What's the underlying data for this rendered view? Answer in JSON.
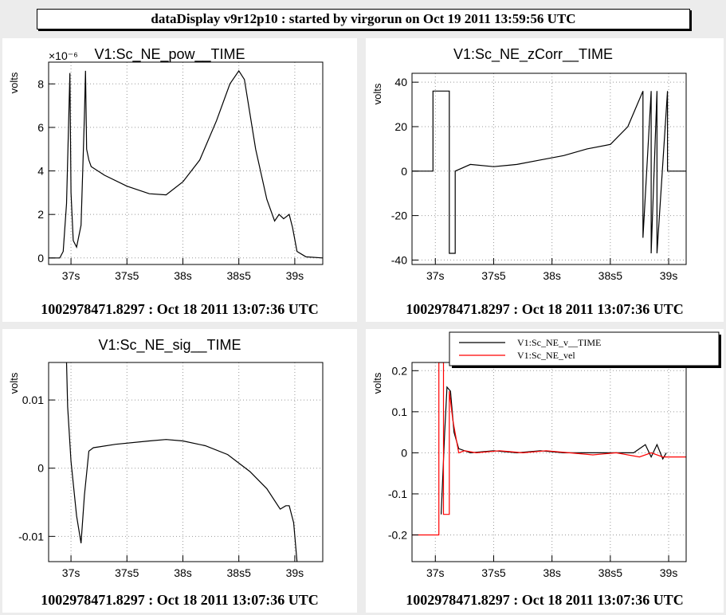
{
  "header": {
    "title": "dataDisplay v9r12p10 : started by virgorun on Oct 19 2011 13:59:56 UTC"
  },
  "chart_data": [
    {
      "type": "line",
      "title": "V1:Sc_NE_pow__TIME",
      "ylabel": "volts",
      "exponent_label": "×10⁻⁶",
      "x_ticks": [
        "37s",
        "37s5",
        "38s",
        "38s5",
        "39s"
      ],
      "x_tick_values": [
        37,
        37.5,
        38,
        38.5,
        39
      ],
      "xlim": [
        36.8,
        39.25
      ],
      "y_ticks": [
        "0",
        "2",
        "4",
        "6",
        "8"
      ],
      "y_tick_values": [
        0,
        2,
        4,
        6,
        8
      ],
      "ylim": [
        -0.3,
        9.0
      ],
      "footer": "1002978471.8297 : Oct 18 2011 13:07:36 UTC",
      "series": [
        {
          "color": "#000000",
          "x": [
            36.8,
            36.9,
            36.93,
            36.96,
            36.99,
            37.0,
            37.02,
            37.05,
            37.09,
            37.12,
            37.13,
            37.14,
            37.16,
            37.18,
            37.3,
            37.5,
            37.7,
            37.85,
            38.0,
            38.15,
            38.3,
            38.42,
            38.5,
            38.55,
            38.65,
            38.75,
            38.82,
            38.86,
            38.9,
            38.95,
            38.98,
            39.02,
            39.1,
            39.25
          ],
          "y": [
            0.0,
            0.0,
            0.3,
            2.5,
            8.5,
            3.0,
            0.8,
            0.5,
            1.5,
            6.5,
            8.6,
            5.0,
            4.5,
            4.2,
            3.8,
            3.3,
            2.95,
            2.9,
            3.5,
            4.5,
            6.3,
            8.0,
            8.6,
            8.2,
            5.0,
            2.7,
            1.7,
            2.0,
            1.8,
            2.0,
            1.4,
            0.3,
            0.05,
            0.0
          ]
        }
      ]
    },
    {
      "type": "line",
      "title": "V1:Sc_NE_zCorr__TIME",
      "ylabel": "volts",
      "x_ticks": [
        "37s",
        "37s5",
        "38s",
        "38s5",
        "39s"
      ],
      "x_tick_values": [
        37,
        37.5,
        38,
        38.5,
        39
      ],
      "xlim": [
        36.8,
        39.15
      ],
      "y_ticks": [
        "-40",
        "-20",
        "0",
        "20",
        "40"
      ],
      "y_tick_values": [
        -40,
        -20,
        0,
        20,
        40
      ],
      "ylim": [
        -42,
        44
      ],
      "footer": "1002978471.8297 : Oct 18 2011 13:07:36 UTC",
      "series": [
        {
          "color": "#000000",
          "x": [
            36.8,
            36.98,
            36.98,
            37.12,
            37.12,
            37.17,
            37.17,
            37.3,
            37.5,
            37.7,
            37.9,
            38.1,
            38.3,
            38.5,
            38.65,
            38.78,
            38.78,
            38.85,
            38.85,
            38.9,
            38.9,
            38.99,
            38.99,
            39.15
          ],
          "y": [
            0,
            0,
            36,
            36,
            -37,
            -37,
            0,
            3,
            2,
            3,
            5,
            7,
            10,
            12,
            20,
            36,
            -30,
            36,
            -37,
            36,
            -37,
            36,
            0,
            0
          ]
        }
      ]
    },
    {
      "type": "line",
      "title": "V1:Sc_NE_sig__TIME",
      "ylabel": "volts",
      "x_ticks": [
        "37s",
        "37s5",
        "38s",
        "38s5",
        "39s"
      ],
      "x_tick_values": [
        37,
        37.5,
        38,
        38.5,
        39
      ],
      "xlim": [
        36.8,
        39.25
      ],
      "y_ticks": [
        "-0.01",
        "0",
        "0.01"
      ],
      "y_tick_values": [
        -0.01,
        0,
        0.01
      ],
      "ylim": [
        -0.0137,
        0.0155
      ],
      "footer": "1002978471.8297 : Oct 18 2011 13:07:36 UTC",
      "series": [
        {
          "color": "#000000",
          "x": [
            36.96,
            36.97,
            37.0,
            37.05,
            37.09,
            37.12,
            37.16,
            37.2,
            37.4,
            37.7,
            37.85,
            38.0,
            38.2,
            38.4,
            38.6,
            38.75,
            38.87,
            38.92,
            38.95,
            38.99,
            39.02
          ],
          "y": [
            0.0155,
            0.009,
            0.001,
            -0.007,
            -0.011,
            -0.004,
            0.0025,
            0.003,
            0.0035,
            0.004,
            0.0042,
            0.004,
            0.0033,
            0.002,
            -0.0005,
            -0.003,
            -0.006,
            -0.0055,
            -0.0055,
            -0.008,
            -0.0137
          ]
        }
      ]
    },
    {
      "type": "line",
      "title": "",
      "ylabel": "volts",
      "x_ticks": [
        "37s",
        "37s5",
        "38s",
        "38s5",
        "39s"
      ],
      "x_tick_values": [
        37,
        37.5,
        38,
        38.5,
        39
      ],
      "xlim": [
        36.8,
        39.15
      ],
      "y_ticks": [
        "-0.2",
        "-0.1",
        "0",
        "0.1",
        "0.2"
      ],
      "y_tick_values": [
        -0.2,
        -0.1,
        0,
        0.1,
        0.2
      ],
      "ylim": [
        -0.265,
        0.22
      ],
      "footer": "1002978471.8297 : Oct 18 2011 13:07:36 UTC",
      "legend": "top-right",
      "series": [
        {
          "name": "V1:Sc_NE_v__TIME",
          "color": "#000000",
          "x": [
            37.05,
            37.08,
            37.1,
            37.13,
            37.16,
            37.2,
            37.3,
            37.5,
            37.7,
            37.9,
            38.1,
            38.3,
            38.5,
            38.7,
            38.8,
            38.85,
            38.9,
            38.95,
            38.98
          ],
          "y": [
            -0.15,
            0.05,
            0.16,
            0.15,
            0.05,
            0.01,
            0.0,
            0.005,
            0.0,
            0.005,
            0.0,
            0.0,
            0.0,
            0.0,
            0.02,
            -0.01,
            0.02,
            -0.015,
            0.0
          ]
        },
        {
          "name": "V1:Sc_NE_vel",
          "color": "#ff0000",
          "x": [
            36.8,
            37.03,
            37.03,
            37.07,
            37.07,
            37.12,
            37.12,
            37.15,
            37.2,
            37.25,
            37.35,
            37.55,
            37.75,
            37.95,
            38.15,
            38.35,
            38.55,
            38.75,
            38.85,
            38.95,
            39.15
          ],
          "y": [
            -0.2,
            -0.2,
            0.22,
            0.22,
            -0.15,
            -0.15,
            0.15,
            0.08,
            0.0,
            0.005,
            0.0,
            0.005,
            0.0,
            0.005,
            0.0,
            -0.005,
            0.0,
            -0.01,
            0.0,
            -0.01,
            -0.01
          ]
        }
      ]
    }
  ]
}
